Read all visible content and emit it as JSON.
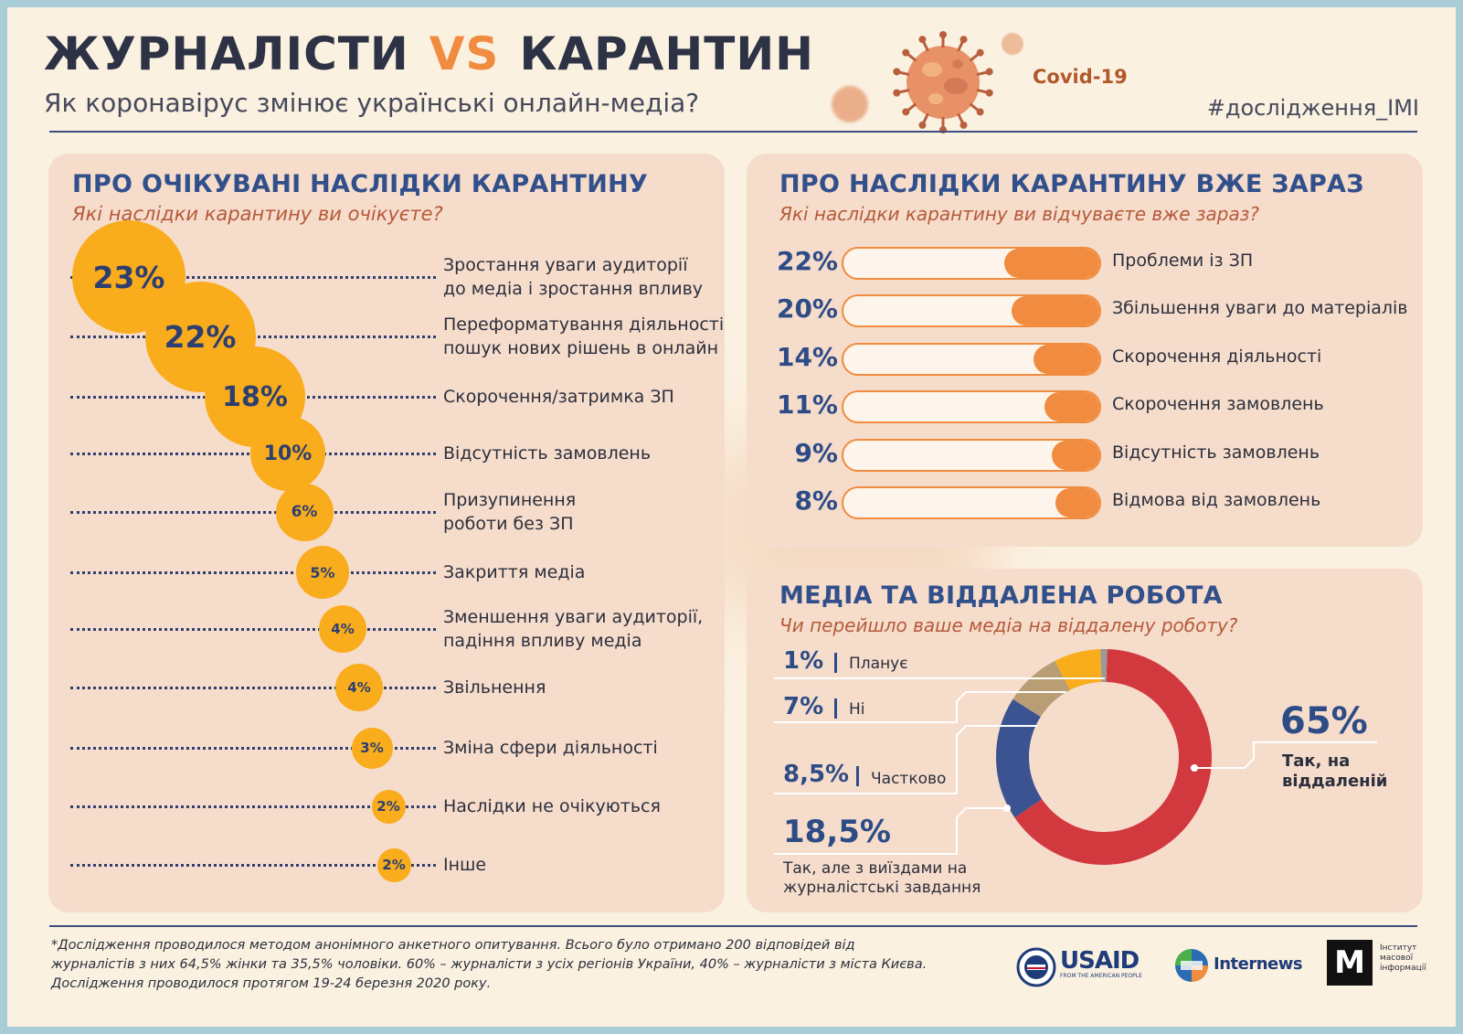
{
  "header": {
    "title_left": "ЖУРНАЛІСТИ",
    "title_vs": "VS",
    "title_right": "КАРАНТИН",
    "subtitle": "Як коронавірус змінює українські онлайн-медіа?",
    "virus_label": "Covid-19",
    "hashtag": "#дослідження_IMI"
  },
  "colors": {
    "accent_orange": "#f08b3f",
    "bubble_yellow": "#f9ac1c",
    "navy": "#2d4c86",
    "donut_red": "#d2393f",
    "donut_blue": "#3b5391",
    "donut_tan": "#b99d74",
    "donut_yellow": "#f9ac1c",
    "donut_grey": "#9a9a9a",
    "panel_bg": "#f6dccb"
  },
  "chart_data": [
    {
      "type": "bubble",
      "title": "ПРО ОЧІКУВАНІ НАСЛІДКИ КАРАНТИНУ",
      "subtitle": "Які наслідки карантину ви очікуєте?",
      "items": [
        {
          "pct": "23%",
          "value": 23,
          "label": [
            "Зростання уваги аудиторії",
            "до медіа і зростання впливу"
          ]
        },
        {
          "pct": "22%",
          "value": 22,
          "label": [
            "Переформатування діяльності,",
            "пошук нових рішень в онлайн"
          ]
        },
        {
          "pct": "18%",
          "value": 18,
          "label": [
            "Скорочення/затримка ЗП"
          ]
        },
        {
          "pct": "10%",
          "value": 10,
          "label": [
            "Відсутність замовлень"
          ]
        },
        {
          "pct": "6%",
          "value": 6,
          "label": [
            "Призупинення",
            "роботи без ЗП"
          ]
        },
        {
          "pct": "5%",
          "value": 5,
          "label": [
            "Закриття медіа"
          ]
        },
        {
          "pct": "4%",
          "value": 4,
          "label": [
            "Зменшення уваги аудиторії,",
            "падіння впливу медіа"
          ]
        },
        {
          "pct": "4%",
          "value": 4,
          "label": [
            "Звільнення"
          ]
        },
        {
          "pct": "3%",
          "value": 3,
          "label": [
            "Зміна сфери діяльності"
          ]
        },
        {
          "pct": "2%",
          "value": 2,
          "label": [
            "Наслідки не очікуються"
          ]
        },
        {
          "pct": "2%",
          "value": 2,
          "label": [
            "Інше"
          ]
        }
      ]
    },
    {
      "type": "bar",
      "title": "ПРО НАСЛІДКИ КАРАНТИНУ ВЖЕ ЗАРАЗ",
      "subtitle": "Які наслідки карантину ви відчуваєте вже зараз?",
      "items": [
        {
          "pct": "22%",
          "value": 22,
          "label": "Проблеми із ЗП"
        },
        {
          "pct": "20%",
          "value": 20,
          "label": "Збільшення уваги до матеріалів"
        },
        {
          "pct": "14%",
          "value": 14,
          "label": "Скорочення діяльності"
        },
        {
          "pct": "11%",
          "value": 11,
          "label": "Скорочення замовлень"
        },
        {
          "pct": "9%",
          "value": 9,
          "label": "Відсутність замовлень"
        },
        {
          "pct": "8%",
          "value": 8,
          "label": "Відмова від замовлень"
        }
      ]
    },
    {
      "type": "pie",
      "title": "МЕДІА ТА ВІДДАЛЕНА РОБОТА",
      "subtitle": "Чи перейшло ваше медіа на віддалену роботу?",
      "slices": [
        {
          "pct": "65%",
          "value": 65,
          "label": [
            "Так, на",
            "віддаленій"
          ],
          "color": "#d2393f"
        },
        {
          "pct": "18,5%",
          "value": 18.5,
          "label": [
            "Так, але з виїздами на",
            "журналістські завдання"
          ],
          "color": "#3b5391"
        },
        {
          "pct": "8,5%",
          "value": 8.5,
          "label": [
            "Частково"
          ],
          "color": "#b99d74"
        },
        {
          "pct": "7%",
          "value": 7,
          "label": [
            "Ні"
          ],
          "color": "#f9ac1c"
        },
        {
          "pct": "1%",
          "value": 1,
          "label": [
            "Планує"
          ],
          "color": "#9a9a9a"
        }
      ]
    }
  ],
  "footer": {
    "note": [
      "*Дослідження проводилося методом анонімного анкетного опитування. Всього було отримано 200 відповідей від",
      "журналістів з них 64,5% жінки та 35,5% чоловіки. 60% – журналісти з усіх регіонів України, 40% – журналісти з міста Києва.",
      "Дослідження проводилося протягом 19-24 березня 2020 року."
    ],
    "logos": {
      "usaid": "USAID",
      "usaid_tagline": "FROM THE AMERICAN PEOPLE",
      "internews": "Internews",
      "imi_mark": "М",
      "imi_name": [
        "Інститут",
        "масової",
        "інформації"
      ]
    }
  }
}
